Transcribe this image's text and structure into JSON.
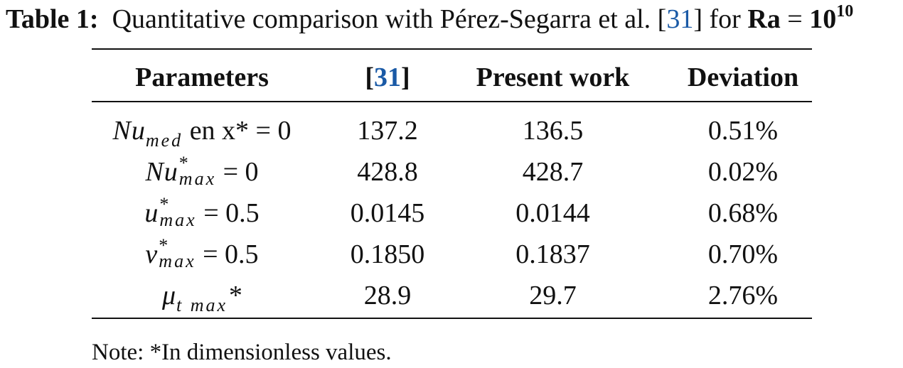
{
  "caption": {
    "label": "Table 1:",
    "text_before_cite": "Quantitative comparison with Pérez-Segarra et al. [",
    "cite": "31",
    "text_after_cite": "] for ",
    "bold_var": "Ra",
    "equals": " = ",
    "base": "10",
    "exponent": "10"
  },
  "table": {
    "headers": {
      "parameters": "Parameters",
      "ref_open": "[",
      "ref_cite": "31",
      "ref_close": "]",
      "present": "Present work",
      "deviation": "Deviation"
    },
    "rows": [
      {
        "symbol": "Nu",
        "subscript": "med",
        "superscript": "",
        "suffix": " en x* = 0",
        "ref": "137.2",
        "present": "136.5",
        "deviation": "0.51%"
      },
      {
        "symbol": "Nu",
        "subscript": "max",
        "superscript": "*",
        "suffix": " = 0",
        "ref": "428.8",
        "present": "428.7",
        "deviation": "0.02%"
      },
      {
        "symbol": "u",
        "subscript": "max",
        "superscript": "*",
        "suffix": " = 0.5",
        "ref": "0.0145",
        "present": "0.0144",
        "deviation": "0.68%"
      },
      {
        "symbol": "v",
        "subscript": "max",
        "superscript": "*",
        "suffix": " = 0.5",
        "ref": "0.1850",
        "present": "0.1837",
        "deviation": "0.70%"
      },
      {
        "symbol": "μ",
        "subscript": "t max",
        "superscript": "",
        "suffix": "*",
        "ref": "28.9",
        "present": "29.7",
        "deviation": "2.76%"
      }
    ]
  },
  "note": "Note: *In dimensionless values.",
  "colors": {
    "citation": "#1a5aa6",
    "text": "#111111"
  }
}
